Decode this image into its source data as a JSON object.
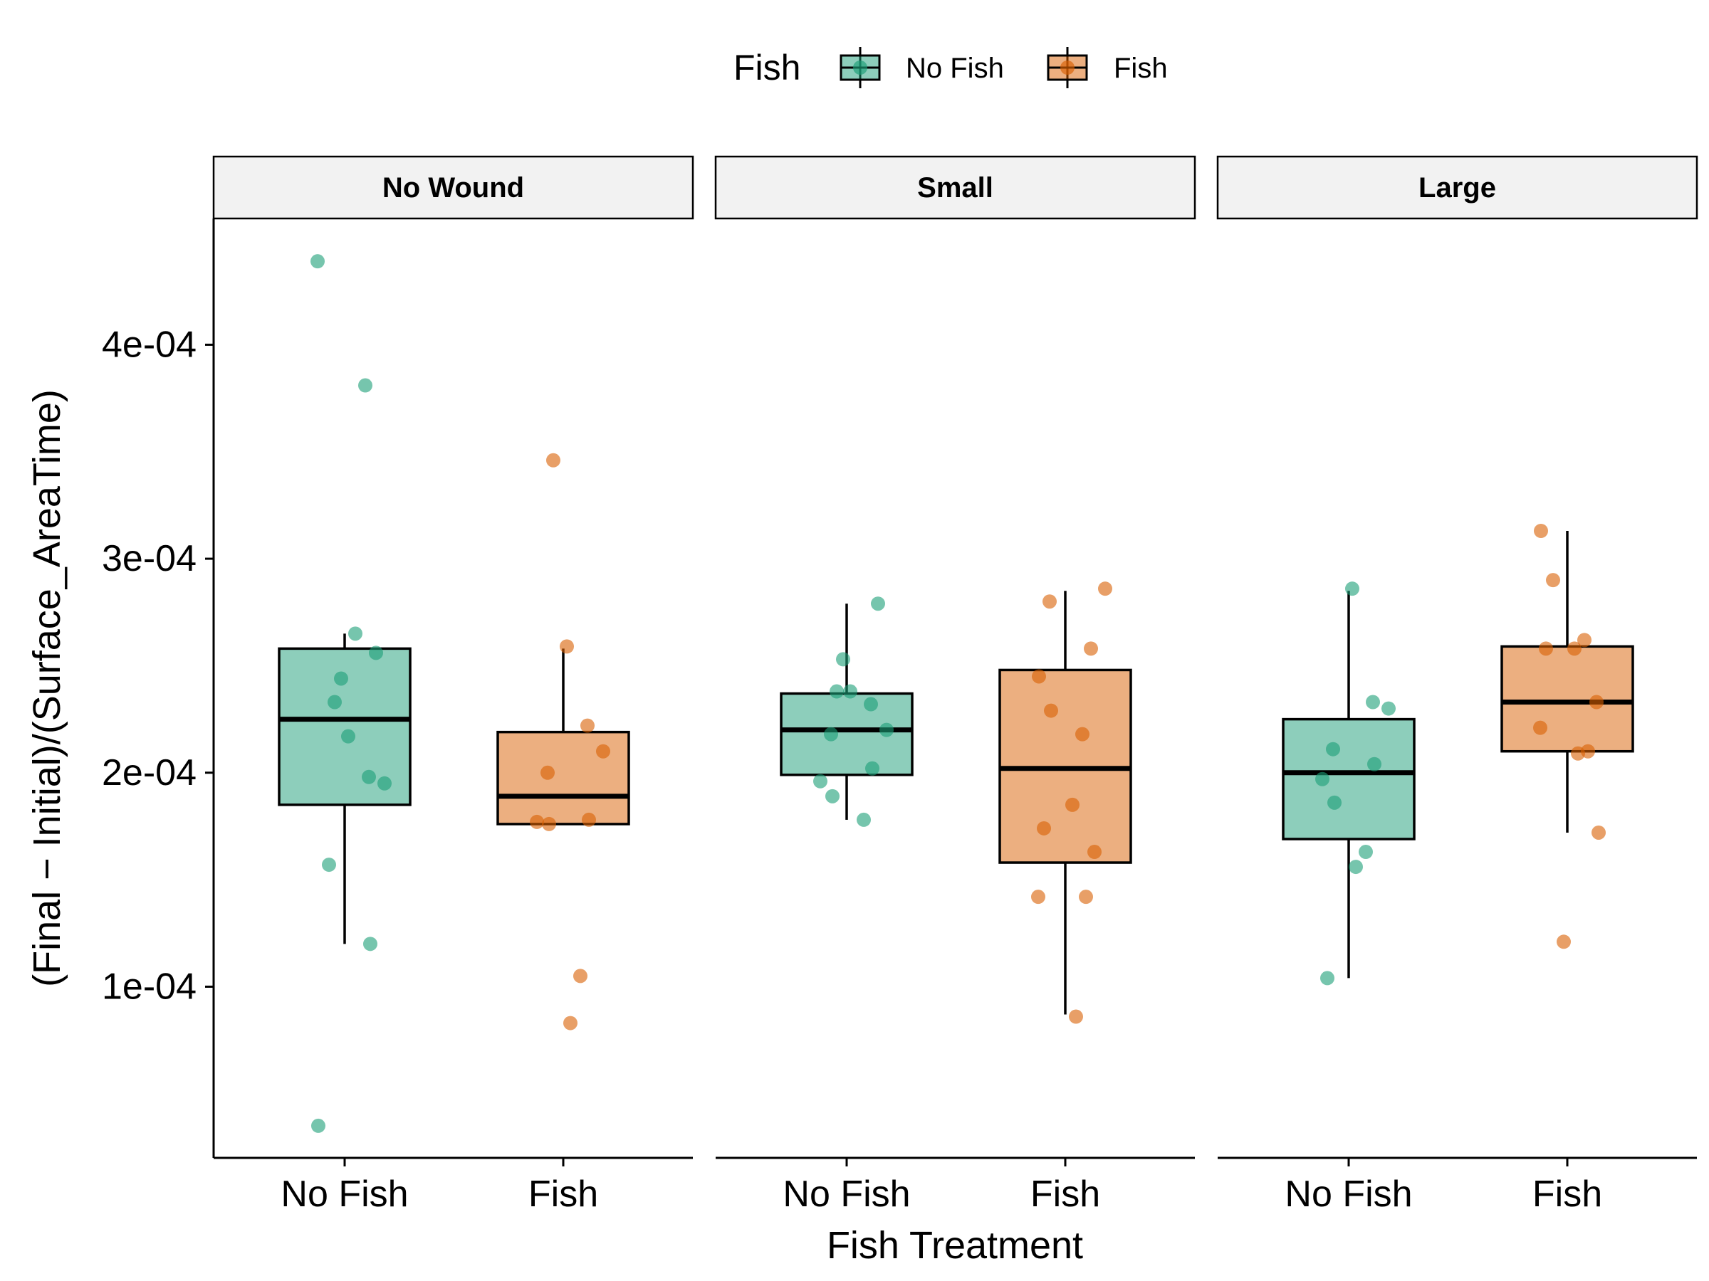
{
  "chart_data": {
    "type": "box",
    "ylabel": "(Final − Initial)/(Surface_AreaTime)",
    "xlabel": "Fish Treatment",
    "legend": {
      "title": "Fish",
      "position": "top",
      "entries": [
        {
          "label": "No Fish",
          "color": "#1B9E77"
        },
        {
          "label": "Fish",
          "color": "#D95F02"
        }
      ]
    },
    "ylim": [
      2e-05,
      0.000459
    ],
    "yticks": [
      0.0001,
      0.0002,
      0.0003,
      0.0004
    ],
    "ytick_labels": [
      "1e-04",
      "2e-04",
      "3e-04",
      "4e-04"
    ],
    "x_categories": [
      "No Fish",
      "Fish"
    ],
    "grid": false,
    "panels": [
      {
        "facet": "No Wound",
        "groups": [
          {
            "x": "No Fish",
            "series": "No Fish",
            "box": {
              "min": 0.00012,
              "q1": 0.000185,
              "median": 0.000225,
              "q3": 0.000258,
              "max": 0.000265
            },
            "points": [
              0.000439,
              0.000381,
              0.000265,
              0.000256,
              0.000244,
              0.000233,
              0.000217,
              0.000198,
              0.000195,
              0.000157,
              0.00012,
              3.5e-05
            ]
          },
          {
            "x": "Fish",
            "series": "Fish",
            "box": {
              "min": 0.000176,
              "q1": 0.000176,
              "median": 0.000189,
              "q3": 0.000219,
              "max": 0.000258
            },
            "points": [
              0.000346,
              0.000259,
              0.000222,
              0.00021,
              0.0002,
              0.000178,
              0.000177,
              0.000176,
              0.000105,
              8.3e-05
            ]
          }
        ]
      },
      {
        "facet": "Small",
        "groups": [
          {
            "x": "No Fish",
            "series": "No Fish",
            "box": {
              "min": 0.000178,
              "q1": 0.000199,
              "median": 0.00022,
              "q3": 0.000237,
              "max": 0.000279
            },
            "points": [
              0.000279,
              0.000253,
              0.000238,
              0.000238,
              0.000232,
              0.00022,
              0.000218,
              0.000202,
              0.000196,
              0.000189,
              0.000178
            ]
          },
          {
            "x": "Fish",
            "series": "Fish",
            "box": {
              "min": 8.7e-05,
              "q1": 0.000158,
              "median": 0.000202,
              "q3": 0.000248,
              "max": 0.000285
            },
            "points": [
              0.000286,
              0.00028,
              0.000258,
              0.000245,
              0.000229,
              0.000218,
              0.000185,
              0.000174,
              0.000163,
              0.000142,
              0.000142,
              8.6e-05
            ]
          }
        ]
      },
      {
        "facet": "Large",
        "groups": [
          {
            "x": "No Fish",
            "series": "No Fish",
            "box": {
              "min": 0.000104,
              "q1": 0.000169,
              "median": 0.0002,
              "q3": 0.000225,
              "max": 0.000285
            },
            "points": [
              0.000286,
              0.000233,
              0.00023,
              0.000211,
              0.000204,
              0.000197,
              0.000186,
              0.000163,
              0.000156,
              0.000104
            ]
          },
          {
            "x": "Fish",
            "series": "Fish",
            "box": {
              "min": 0.000172,
              "q1": 0.00021,
              "median": 0.000233,
              "q3": 0.000259,
              "max": 0.000313
            },
            "points": [
              0.000313,
              0.00029,
              0.000262,
              0.000258,
              0.000258,
              0.000233,
              0.000221,
              0.00021,
              0.000209,
              0.000172,
              0.000121
            ]
          }
        ]
      }
    ]
  }
}
